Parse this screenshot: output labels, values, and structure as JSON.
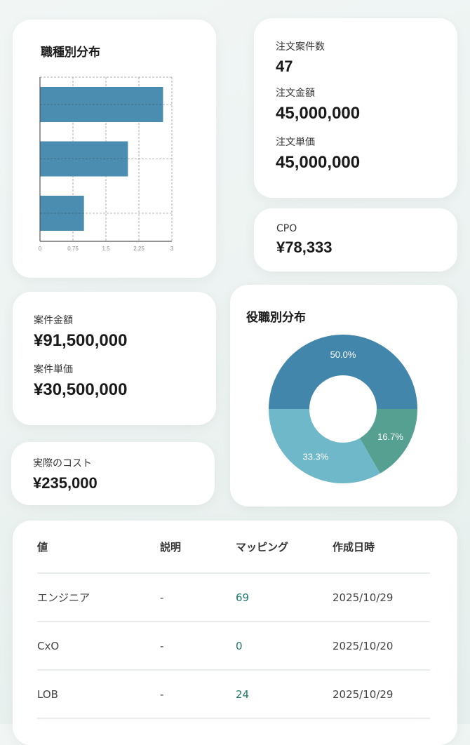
{
  "job_type_chart": {
    "title": "職種別分布",
    "chart_data": {
      "type": "bar",
      "orientation": "horizontal",
      "values": [
        2.8,
        2,
        1
      ],
      "xticks": [
        "0",
        "0.75",
        "1.5",
        "2.25",
        "3"
      ],
      "xlim": [
        0,
        3
      ],
      "grid": true,
      "color": "#4a8db0"
    }
  },
  "orders": {
    "count_label": "注文案件数",
    "count": "47",
    "amount_label": "注文金額",
    "amount": "45,000,000",
    "unit_label": "注文単価",
    "unit": "45,000,000"
  },
  "cpo": {
    "label": "CPO",
    "value": "¥78,333"
  },
  "deals": {
    "amount_label": "案件金額",
    "amount": "¥91,500,000",
    "unit_label": "案件単価",
    "unit": "¥30,500,000"
  },
  "cost": {
    "label": "実際のコスト",
    "value": "¥235,000"
  },
  "role_chart": {
    "title": "役職別分布",
    "chart_data": {
      "type": "pie",
      "donut": true,
      "values": [
        50.0,
        16.7,
        33.3
      ],
      "labels": [
        "50.0%",
        "16.7%",
        "33.3%"
      ],
      "colors": [
        "#4286ac",
        "#55a091",
        "#6fb8c9"
      ]
    }
  },
  "table": {
    "headers": [
      "値",
      "説明",
      "マッピング",
      "作成日時"
    ],
    "rows": [
      [
        "エンジニア",
        "-",
        "69",
        "2025/10/29"
      ],
      [
        "CxO",
        "-",
        "0",
        "2025/10/20"
      ],
      [
        "LOB",
        "-",
        "24",
        "2025/10/29"
      ]
    ]
  }
}
